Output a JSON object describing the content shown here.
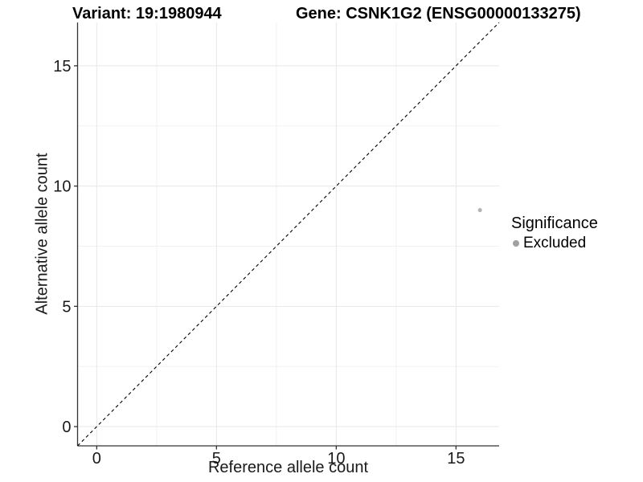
{
  "titles": {
    "variant": "Variant: 19:1980944",
    "gene": "Gene: CSNK1G2 (ENSG00000133275)"
  },
  "chart_data": {
    "type": "scatter",
    "title_left": "Variant: 19:1980944",
    "title_right": "Gene: CSNK1G2 (ENSG00000133275)",
    "xlabel": "Reference allele count",
    "ylabel": "Alternative allele count",
    "xlim": [
      -0.8,
      16.8
    ],
    "ylim": [
      -0.8,
      16.8
    ],
    "x_ticks": [
      0,
      5,
      10,
      15
    ],
    "y_ticks": [
      0,
      5,
      10,
      15
    ],
    "grid": {
      "major_step": 5,
      "minor_step": 2.5,
      "major_color": "#e7e7e7",
      "minor_color": "#f2f2f2"
    },
    "axis_color": "#333333",
    "reference_line": {
      "type": "identity",
      "style": "dashed",
      "color": "#000000"
    },
    "series": [
      {
        "name": "Excluded",
        "color": "#b3b3b3",
        "points": [
          {
            "x": 16,
            "y": 9
          }
        ]
      }
    ],
    "legend": {
      "title": "Significance",
      "position": "right",
      "items": [
        {
          "label": "Excluded",
          "color": "#a0a0a0"
        }
      ]
    }
  }
}
